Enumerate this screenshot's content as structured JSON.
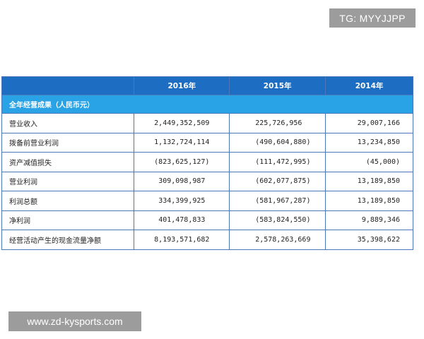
{
  "watermark_top": "TG: MYYJJPP",
  "watermark_bottom": "www.zd-kysports.com",
  "table": {
    "headers": [
      "",
      "2016年",
      "2015年",
      "2014年"
    ],
    "section_title": "全年经营成果（人民币元）",
    "rows": [
      {
        "label": "营业收入",
        "values": [
          "2,449,352,509",
          "225,726,956",
          "29,007,166"
        ]
      },
      {
        "label": "拨备前营业利润",
        "values": [
          "1,132,724,114",
          "(490,604,880)",
          "13,234,850"
        ]
      },
      {
        "label": "资产减值损失",
        "values": [
          "(823,625,127)",
          "(111,472,995)",
          "(45,000)"
        ]
      },
      {
        "label": "营业利润",
        "values": [
          "309,098,987",
          "(602,077,875)",
          "13,189,850"
        ]
      },
      {
        "label": "利润总额",
        "values": [
          "334,399,925",
          "(581,967,287)",
          "13,189,850"
        ]
      },
      {
        "label": "净利润",
        "values": [
          "401,478,833",
          "(583,824,550)",
          "9,889,346"
        ]
      },
      {
        "label": "经营活动产生的现金流量净额",
        "values": [
          "8,193,571,682",
          "2,578,263,669",
          "35,398,622"
        ]
      }
    ]
  },
  "colors": {
    "header_bg": "#1d6ec2",
    "section_bg": "#2aa3e6",
    "border": "#4a78b8",
    "badge_bg": "#9c9c9c"
  }
}
